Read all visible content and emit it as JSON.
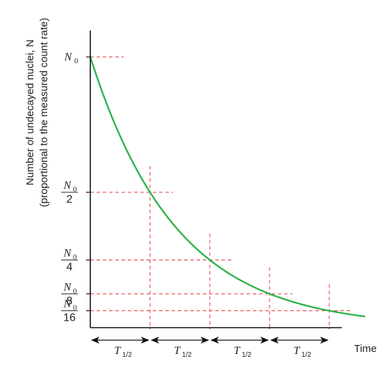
{
  "chart_data": {
    "type": "line",
    "title": "",
    "xlabel": "Time",
    "ylabel_line1": "Number of undecayed nuclei, N",
    "ylabel_line2": "(proportional to the measured count rate)",
    "x_unit_label": {
      "symbol": "T",
      "subscript": "1/2"
    },
    "x_half_lives": [
      1,
      2,
      3,
      4
    ],
    "xlim": [
      0,
      4.6
    ],
    "ylim": [
      0,
      1.0
    ],
    "y_ticks": [
      {
        "value": 1.0,
        "numerator": "N",
        "numerator_sub": "0",
        "denominator": ""
      },
      {
        "value": 0.5,
        "numerator": "N",
        "numerator_sub": "0",
        "denominator": "2"
      },
      {
        "value": 0.25,
        "numerator": "N",
        "numerator_sub": "0",
        "denominator": "4"
      },
      {
        "value": 0.125,
        "numerator": "N",
        "numerator_sub": "0",
        "denominator": "8"
      },
      {
        "value": 0.0625,
        "numerator": "N",
        "numerator_sub": "0",
        "denominator": "16"
      }
    ],
    "series": [
      {
        "curve": "exponential decay",
        "x": [
          0,
          1,
          2,
          3,
          4,
          4.6
        ],
        "y": [
          1.0,
          0.5,
          0.25,
          0.125,
          0.0625,
          0.0412
        ]
      }
    ],
    "colors": {
      "curve": "#2db34a",
      "guides": "#e0303a",
      "axes": "#111111"
    }
  }
}
